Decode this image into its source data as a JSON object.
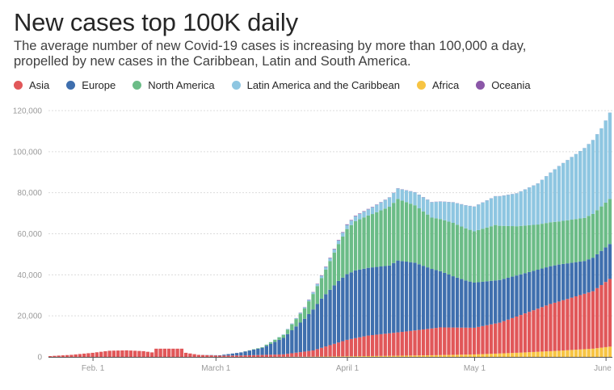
{
  "header": {
    "title": "New cases top 100K daily",
    "subtitle": "The average number of new Covid-19 cases is increasing by more than 100,000 a day, propelled by new cases in the Caribbean, Latin and South America."
  },
  "legend": [
    {
      "label": "Asia",
      "color": "#e15759"
    },
    {
      "label": "Europe",
      "color": "#3f6fae"
    },
    {
      "label": "North America",
      "color": "#6bbc87"
    },
    {
      "label": "Latin America and the Caribbean",
      "color": "#8ec6e1"
    },
    {
      "label": "Africa",
      "color": "#f7c443"
    },
    {
      "label": "Oceania",
      "color": "#8b57a8"
    }
  ],
  "chart_data": {
    "type": "bar",
    "stacked": true,
    "title": "New cases top 100K daily",
    "xlabel": "",
    "ylabel": "",
    "ylim": [
      0,
      120000
    ],
    "yticks": [
      0,
      20000,
      40000,
      60000,
      80000,
      100000,
      120000
    ],
    "ytick_labels": [
      "0",
      "20,000",
      "40,000",
      "60,000",
      "80,000",
      "100,000",
      "120,000"
    ],
    "grid": true,
    "legend_position": "top-left",
    "x_start": "Jan. 22",
    "x_end": "June 2",
    "xtick_labels": [
      {
        "label": "Feb. 1",
        "day_index": 10
      },
      {
        "label": "March 1",
        "day_index": 39
      },
      {
        "label": "April 1",
        "day_index": 70
      },
      {
        "label": "May 1",
        "day_index": 100
      },
      {
        "label": "June 1",
        "day_index": 131
      }
    ],
    "stack_order": [
      "Africa",
      "Asia",
      "Europe",
      "North America",
      "Latin America and the Caribbean",
      "Oceania"
    ],
    "keypoints": {
      "Asia": [
        [
          0,
          400
        ],
        [
          5,
          1000
        ],
        [
          10,
          2000
        ],
        [
          14,
          3000
        ],
        [
          18,
          3200
        ],
        [
          22,
          2800
        ],
        [
          24,
          2200
        ],
        [
          25,
          4000
        ],
        [
          31,
          4000
        ],
        [
          32,
          2000
        ],
        [
          35,
          1000
        ],
        [
          40,
          600
        ],
        [
          45,
          700
        ],
        [
          55,
          1200
        ],
        [
          62,
          3000
        ],
        [
          70,
          8000
        ],
        [
          75,
          10000
        ],
        [
          85,
          12000
        ],
        [
          92,
          13500
        ],
        [
          100,
          13000
        ],
        [
          106,
          15000
        ],
        [
          112,
          19000
        ],
        [
          118,
          23000
        ],
        [
          124,
          26000
        ],
        [
          128,
          28000
        ],
        [
          132,
          33000
        ]
      ],
      "Europe": [
        [
          0,
          0
        ],
        [
          35,
          0
        ],
        [
          40,
          200
        ],
        [
          45,
          1500
        ],
        [
          50,
          3500
        ],
        [
          55,
          8000
        ],
        [
          60,
          16000
        ],
        [
          64,
          24000
        ],
        [
          68,
          30000
        ],
        [
          70,
          32000
        ],
        [
          72,
          33000
        ],
        [
          80,
          33000
        ],
        [
          82,
          35000
        ],
        [
          86,
          33000
        ],
        [
          90,
          29000
        ],
        [
          95,
          25000
        ],
        [
          98,
          23000
        ],
        [
          100,
          22000
        ],
        [
          105,
          21000
        ],
        [
          110,
          20000
        ],
        [
          115,
          19000
        ],
        [
          120,
          18000
        ],
        [
          126,
          16000
        ],
        [
          132,
          17000
        ]
      ],
      "North America": [
        [
          0,
          0
        ],
        [
          45,
          0
        ],
        [
          50,
          300
        ],
        [
          55,
          1500
        ],
        [
          60,
          5000
        ],
        [
          64,
          10000
        ],
        [
          68,
          18000
        ],
        [
          70,
          22000
        ],
        [
          72,
          24000
        ],
        [
          76,
          26000
        ],
        [
          82,
          30000
        ],
        [
          86,
          28000
        ],
        [
          90,
          25000
        ],
        [
          95,
          26000
        ],
        [
          100,
          25000
        ],
        [
          105,
          27000
        ],
        [
          110,
          24000
        ],
        [
          115,
          22000
        ],
        [
          120,
          21000
        ],
        [
          126,
          21000
        ],
        [
          132,
          22000
        ]
      ],
      "Latin America and the Caribbean": [
        [
          0,
          0
        ],
        [
          50,
          0
        ],
        [
          55,
          200
        ],
        [
          60,
          500
        ],
        [
          65,
          1200
        ],
        [
          70,
          2000
        ],
        [
          75,
          3000
        ],
        [
          80,
          4500
        ],
        [
          85,
          6000
        ],
        [
          90,
          7500
        ],
        [
          95,
          10000
        ],
        [
          100,
          12000
        ],
        [
          105,
          14000
        ],
        [
          110,
          16000
        ],
        [
          115,
          20000
        ],
        [
          120,
          27000
        ],
        [
          126,
          34000
        ],
        [
          130,
          38000
        ],
        [
          132,
          42000
        ]
      ],
      "Africa": [
        [
          0,
          0
        ],
        [
          50,
          0
        ],
        [
          60,
          100
        ],
        [
          70,
          300
        ],
        [
          80,
          500
        ],
        [
          90,
          800
        ],
        [
          100,
          1200
        ],
        [
          110,
          2000
        ],
        [
          120,
          3000
        ],
        [
          128,
          4000
        ],
        [
          132,
          5000
        ]
      ],
      "Oceania": [
        [
          0,
          0
        ],
        [
          55,
          0
        ],
        [
          60,
          150
        ],
        [
          70,
          300
        ],
        [
          80,
          100
        ],
        [
          132,
          30
        ]
      ]
    },
    "approximate_totals": [
      {
        "date": "Feb. 1",
        "value": 2000
      },
      {
        "date": "March 1",
        "value": 600
      },
      {
        "date": "April 1",
        "value": 72000
      },
      {
        "date": "April 13",
        "value": 83000
      },
      {
        "date": "May 1",
        "value": 78000
      },
      {
        "date": "June 2",
        "value": 117000
      }
    ]
  }
}
